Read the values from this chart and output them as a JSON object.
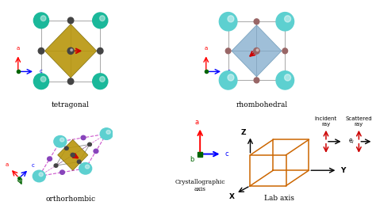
{
  "bg_color": "#ffffff",
  "tetragonal_title": "tetragonal",
  "rhombohedral_title": "rhombohedral",
  "orthorhombic_title": "orthorhombic",
  "crystallo_title": "Crystallographic\naxis",
  "lab_title": "Lab axis",
  "teal_green": "#1ab89a",
  "teal_light": "#5dd0d0",
  "golden": "#b8960c",
  "blue_shade": "#7faacc",
  "purple_color": "#8844bb",
  "dark_gray": "#444444",
  "mid_gray": "#777777",
  "red_color": "#cc0000",
  "orange_color": "#cc6600",
  "brown_atom": "#996666",
  "font_size": 6.5
}
